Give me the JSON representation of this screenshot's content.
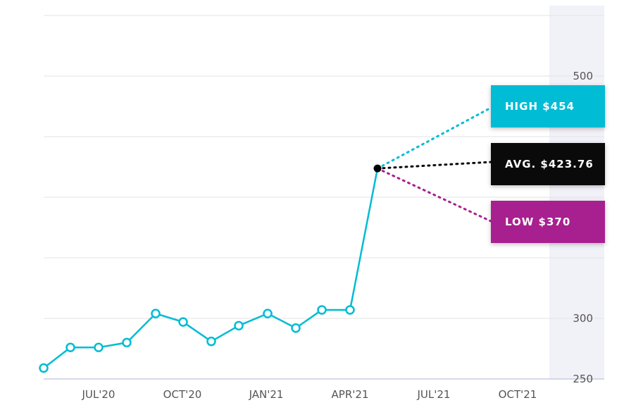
{
  "chart_data": {
    "type": "line",
    "x_ticks": [
      "JUL'20",
      "OCT'20",
      "JAN'21",
      "APR'21",
      "JUL'21",
      "OCT'21"
    ],
    "y_ticks": [
      250,
      300,
      500
    ],
    "ylim": [
      240,
      550
    ],
    "series": [
      {
        "values": [
          259,
          276,
          276,
          280,
          304,
          297,
          281,
          294,
          304,
          292,
          307,
          307,
          423.76
        ]
      }
    ],
    "forecast": {
      "high": 454,
      "avg": 423.76,
      "low": 370
    },
    "grid": true,
    "colors": {
      "line": "#00bcd4",
      "high": "#00bcd4",
      "avg": "#0a0a0a",
      "low": "#a8208f",
      "forecast_band": "#f1f1f8"
    }
  },
  "badges": {
    "high": "HIGH $454",
    "avg": "AVG. $423.76",
    "low": "LOW $370"
  }
}
